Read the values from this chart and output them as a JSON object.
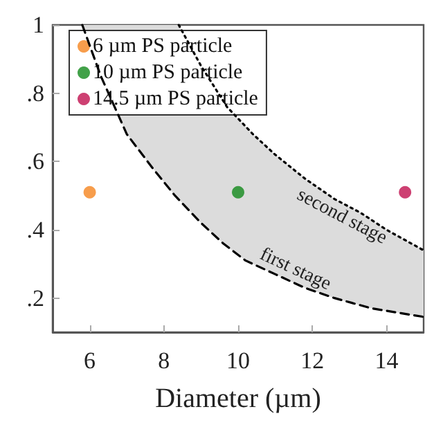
{
  "chart_data": {
    "type": "scatter",
    "xlabel": "Diameter (µm)",
    "xlim": [
      5,
      15
    ],
    "ylim": [
      0.1,
      1
    ],
    "xticks": [
      6,
      8,
      10,
      12,
      14
    ],
    "yticks": [
      {
        "value": 0.2,
        "label": ".2"
      },
      {
        "value": 0.4,
        "label": ".4"
      },
      {
        "value": 0.6,
        "label": ".6"
      },
      {
        "value": 0.8,
        "label": ".8"
      },
      {
        "value": 1,
        "label": "1"
      }
    ],
    "legend": "top left",
    "marker": "circle",
    "grid": false,
    "series": [
      {
        "name": "6 µm PS particle",
        "color": "#f5841f",
        "x": [
          6
        ],
        "values": [
          0.51
        ]
      },
      {
        "name": "10 µm PS particle",
        "color": "#138a1b",
        "x": [
          10
        ],
        "values": [
          0.51
        ]
      },
      {
        "name": "14.5 µm PS particle",
        "color": "#c0104f",
        "x": [
          14.5
        ],
        "values": [
          0.51
        ]
      },
      {
        "type": "line",
        "name": "first stage",
        "color": "#000000",
        "line_style": "dashed",
        "marker": "none",
        "x": [
          5.8,
          6.3,
          7.0,
          7.7,
          8.3,
          9.0,
          9.6,
          10.2,
          11.0,
          11.8,
          12.6,
          13.6,
          15
        ],
        "values": [
          1.0,
          0.85,
          0.68,
          0.58,
          0.5,
          0.42,
          0.36,
          0.31,
          0.27,
          0.23,
          0.2,
          0.17,
          0.145
        ]
      },
      {
        "type": "line",
        "name": "second stage",
        "color": "#000000",
        "line_style": "dotted",
        "marker": "none",
        "x": [
          8.4,
          9.0,
          9.7,
          10.4,
          11.0,
          11.8,
          12.6,
          13.3,
          14.0,
          15
        ],
        "values": [
          1.0,
          0.88,
          0.76,
          0.68,
          0.62,
          0.55,
          0.49,
          0.45,
          0.4,
          0.34
        ]
      }
    ]
  }
}
